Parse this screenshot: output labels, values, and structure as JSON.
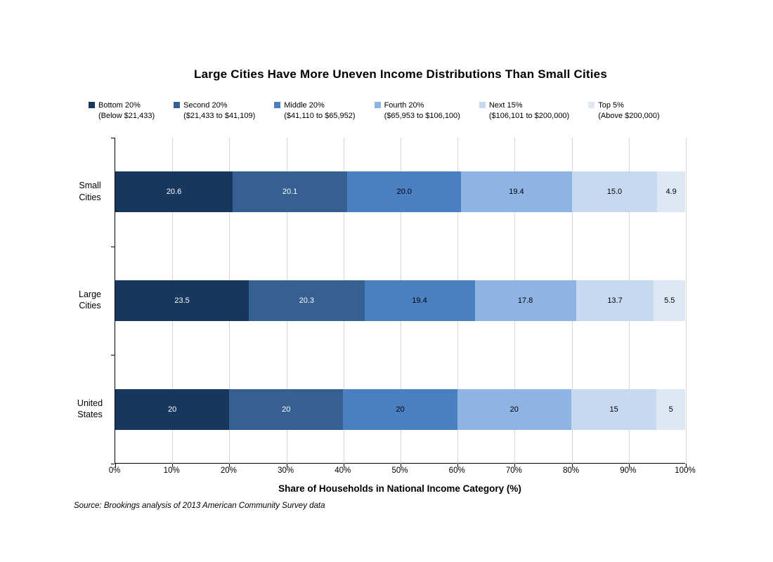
{
  "chart_data": {
    "type": "bar",
    "orientation": "horizontal",
    "stacked": true,
    "title": "Large Cities Have More Uneven Income Distributions Than Small Cities",
    "xlabel": "Share of Households in National Income Category (%)",
    "source": "Source: Brookings analysis of 2013 American Community Survey data",
    "categories": [
      "Small Cities",
      "Large Cities",
      "United States"
    ],
    "category_lines": [
      [
        "Small",
        "Cities"
      ],
      [
        "Large",
        "Cities"
      ],
      [
        "United",
        "States"
      ]
    ],
    "series": [
      {
        "name": "Bottom 20%",
        "range": "(Below $21,433)",
        "color": "#17375E",
        "label_color": "#FFFFFF",
        "values": [
          20.6,
          23.5,
          20
        ],
        "labels": [
          "20.6",
          "23.5",
          "20"
        ]
      },
      {
        "name": "Second 20%",
        "range": "($21,433 to $41,109)",
        "color": "#366092",
        "label_color": "#FFFFFF",
        "values": [
          20.1,
          20.3,
          20
        ],
        "labels": [
          "20.1",
          "20.3",
          "20"
        ]
      },
      {
        "name": "Middle 20%",
        "range": "($41,110 to $65,952)",
        "color": "#4A80C2",
        "label_color": "#000000",
        "values": [
          20.0,
          19.4,
          20
        ],
        "labels": [
          "20.0",
          "19.4",
          "20"
        ]
      },
      {
        "name": "Fourth 20%",
        "range": "($65,953 to $106,100)",
        "color": "#8DB4E2",
        "label_color": "#000000",
        "values": [
          19.4,
          17.8,
          20
        ],
        "labels": [
          "19.4",
          "17.8",
          "20"
        ]
      },
      {
        "name": "Next 15%",
        "range": "($106,101 to $200,000)",
        "color": "#C6D9F1",
        "label_color": "#000000",
        "values": [
          15.0,
          13.7,
          15
        ],
        "labels": [
          "15.0",
          "13.7",
          "15"
        ]
      },
      {
        "name": "Top 5%",
        "range": "(Above $200,000)",
        "color": "#DEE8F4",
        "label_color": "#000000",
        "values": [
          4.9,
          5.5,
          5
        ],
        "labels": [
          "4.9",
          "5.5",
          "5"
        ]
      }
    ],
    "x_axis": {
      "ticks": [
        "0%",
        "10%",
        "20%",
        "30%",
        "40%",
        "50%",
        "60%",
        "70%",
        "80%",
        "90%",
        "100%"
      ],
      "xlim": [
        0,
        100
      ],
      "grid": true
    },
    "colors": {
      "gridline": "#D6D6D6",
      "axis": "#000000",
      "background": "#FFFFFF"
    },
    "legend_position": "top"
  }
}
